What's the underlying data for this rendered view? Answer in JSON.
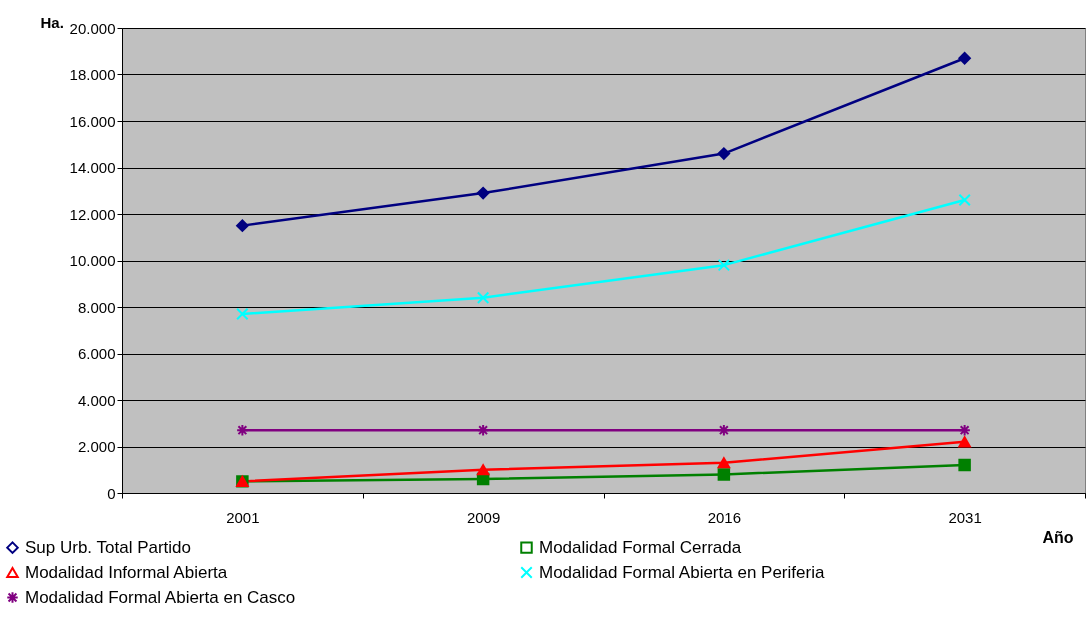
{
  "chart_data": {
    "type": "line",
    "xlabel": "Año",
    "ylabel": "Ha.",
    "categories": [
      "2001",
      "2009",
      "2016",
      "2031"
    ],
    "ylim": [
      0,
      20000
    ],
    "yticks": [
      {
        "value": 0,
        "label": "0"
      },
      {
        "value": 2000,
        "label": "2.000"
      },
      {
        "value": 4000,
        "label": "4.000"
      },
      {
        "value": 6000,
        "label": "6.000"
      },
      {
        "value": 8000,
        "label": "8.000"
      },
      {
        "value": 10000,
        "label": "10.000"
      },
      {
        "value": 12000,
        "label": "12.000"
      },
      {
        "value": 14000,
        "label": "14.000"
      },
      {
        "value": 16000,
        "label": "16.000"
      },
      {
        "value": 18000,
        "label": "18.000"
      },
      {
        "value": 20000,
        "label": "20.000"
      }
    ],
    "grid": "y",
    "legend": "bottom left",
    "series": [
      {
        "name": "Sup Urb. Total Partido",
        "color": "#000080",
        "marker": "diamond",
        "values": [
          11500,
          12900,
          14600,
          18700
        ]
      },
      {
        "name": "Modalidad Formal Cerrada",
        "color": "#008000",
        "marker": "square",
        "values": [
          500,
          600,
          800,
          1200
        ]
      },
      {
        "name": "Modalidad Informal Abierta",
        "color": "#ff0000",
        "marker": "triangle",
        "values": [
          500,
          1000,
          1300,
          2200
        ]
      },
      {
        "name": "Modalidad Formal Abierta en Periferia",
        "color": "#00ffff",
        "marker": "cross",
        "values": [
          7700,
          8400,
          9800,
          12600
        ]
      },
      {
        "name": "Modalidad Formal Abierta en Casco",
        "color": "#800080",
        "marker": "cross",
        "values": [
          2700,
          2700,
          2700,
          2700
        ]
      }
    ]
  }
}
